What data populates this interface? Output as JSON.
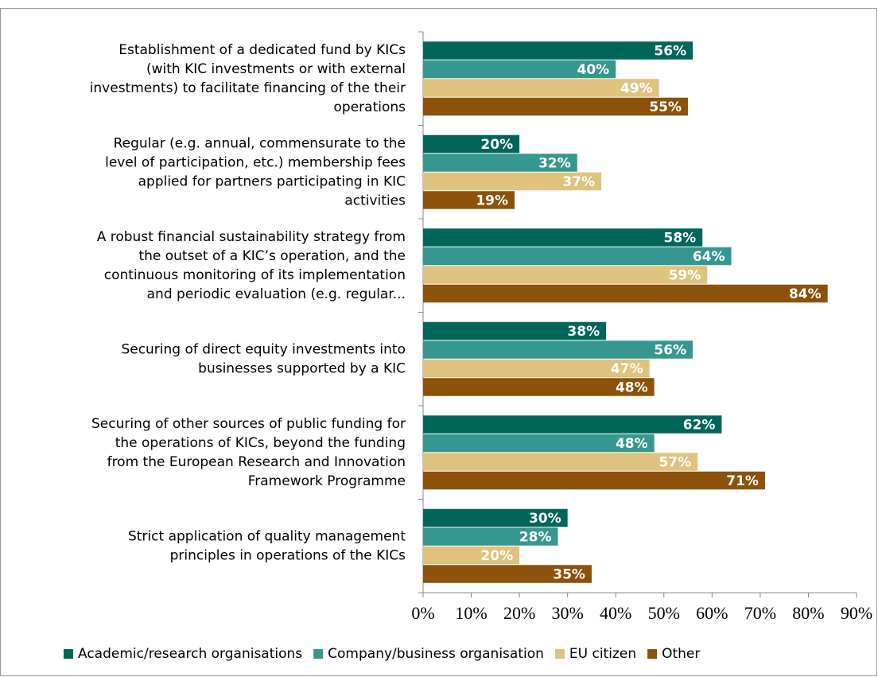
{
  "chart_data": {
    "type": "bar",
    "orientation": "horizontal",
    "categories": [
      "Establishment of a dedicated fund by KICs\n(with KIC investments or with external\ninvestments) to facilitate financing of the their\noperations",
      "Regular (e.g. annual, commensurate to the\nlevel of participation, etc.) membership fees\napplied for partners participating in KIC\nactivities",
      "A robust financial sustainability strategy from\nthe outset of a KICʼs operation, and the\ncontinuous monitoring of its implementation\nand periodic evaluation (e.g. regular...",
      "Securing of direct equity investments into\nbusinesses supported by a KIC",
      "Securing of other sources of public funding for\nthe operations of KICs, beyond the funding\nfrom the European Research and Innovation\nFramework Programme",
      "Strict application of quality management\nprinciples in operations of the KICs"
    ],
    "series": [
      {
        "name": "Academic/research organisations",
        "color": "#00665a",
        "values": [
          56,
          20,
          58,
          38,
          62,
          30
        ],
        "value_labels": [
          "56%",
          "20%",
          "58%",
          "38%",
          "62%",
          "30%"
        ]
      },
      {
        "name": "Company/business organisation",
        "color": "#35978f",
        "values": [
          40,
          32,
          64,
          56,
          48,
          28
        ],
        "value_labels": [
          "40%",
          "32%",
          "64%",
          "56%",
          "48%",
          "28%"
        ]
      },
      {
        "name": "EU citizen",
        "color": "#dfc27d",
        "values": [
          49,
          37,
          59,
          47,
          57,
          20
        ],
        "value_labels": [
          "49%",
          "37%",
          "59%",
          "47%",
          "57%",
          "20%"
        ]
      },
      {
        "name": "Other",
        "color": "#8c510a",
        "values": [
          55,
          19,
          84,
          48,
          71,
          35
        ],
        "value_labels": [
          "55%",
          "19%",
          "84%",
          "48%",
          "71%",
          "35%"
        ]
      }
    ],
    "xlim": [
      0,
      90
    ],
    "xticks": [
      {
        "value": 0,
        "label": "0%"
      },
      {
        "value": 10,
        "label": "10%"
      },
      {
        "value": 20,
        "label": "20%"
      },
      {
        "value": 30,
        "label": "30%"
      },
      {
        "value": 40,
        "label": "40%"
      },
      {
        "value": 50,
        "label": "50%"
      },
      {
        "value": 60,
        "label": "60%"
      },
      {
        "value": 70,
        "label": "70%"
      },
      {
        "value": 80,
        "label": "80%"
      },
      {
        "value": 90,
        "label": "90%"
      }
    ],
    "legend": "bottom",
    "grid": false
  }
}
